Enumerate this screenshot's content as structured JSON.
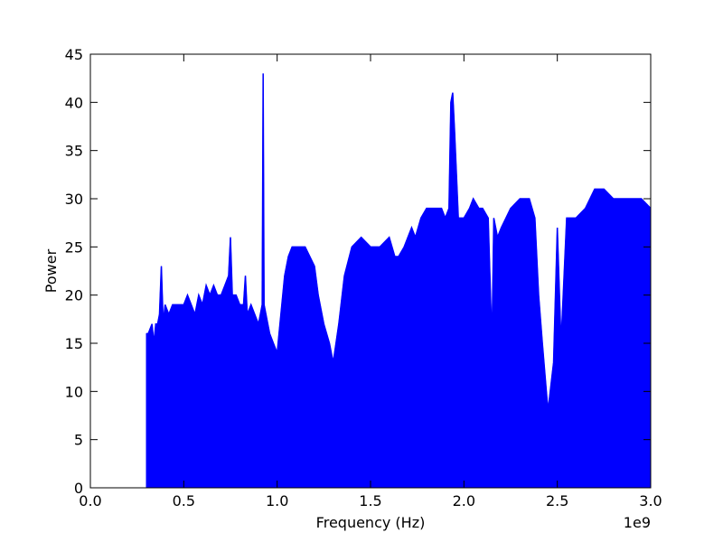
{
  "chart_data": {
    "type": "line",
    "title": "",
    "xlabel": "Frequency (Hz)",
    "ylabel": "Power",
    "x_offset_label": "1e9",
    "x_unit_scale": 1000000000,
    "xlim": [
      0.0,
      3.0
    ],
    "ylim": [
      0,
      45
    ],
    "x_ticks": [
      0.0,
      0.5,
      1.0,
      1.5,
      2.0,
      2.5,
      3.0
    ],
    "x_tick_labels": [
      "0.0",
      "0.5",
      "1.0",
      "1.5",
      "2.0",
      "2.5",
      "3.0"
    ],
    "y_ticks": [
      0,
      5,
      10,
      15,
      20,
      25,
      30,
      35,
      40,
      45
    ],
    "y_tick_labels": [
      "0",
      "5",
      "10",
      "15",
      "20",
      "25",
      "30",
      "35",
      "40",
      "45"
    ],
    "grid": false,
    "legend": "none",
    "series": [
      {
        "color": "#0000ff",
        "x": [
          0.3,
          0.31,
          0.33,
          0.34,
          0.35,
          0.36,
          0.37,
          0.38,
          0.39,
          0.4,
          0.42,
          0.44,
          0.46,
          0.48,
          0.5,
          0.52,
          0.54,
          0.56,
          0.58,
          0.6,
          0.62,
          0.64,
          0.66,
          0.68,
          0.7,
          0.72,
          0.74,
          0.75,
          0.76,
          0.78,
          0.8,
          0.82,
          0.83,
          0.84,
          0.86,
          0.88,
          0.9,
          0.92,
          0.925,
          0.93,
          0.94,
          0.96,
          0.98,
          1.0,
          1.02,
          1.04,
          1.06,
          1.08,
          1.1,
          1.15,
          1.2,
          1.22,
          1.25,
          1.28,
          1.3,
          1.33,
          1.36,
          1.4,
          1.45,
          1.5,
          1.55,
          1.6,
          1.63,
          1.65,
          1.68,
          1.7,
          1.72,
          1.74,
          1.77,
          1.8,
          1.85,
          1.88,
          1.9,
          1.92,
          1.93,
          1.94,
          1.95,
          1.97,
          2.0,
          2.03,
          2.05,
          2.08,
          2.1,
          2.13,
          2.15,
          2.16,
          2.18,
          2.2,
          2.25,
          2.3,
          2.35,
          2.38,
          2.4,
          2.42,
          2.45,
          2.48,
          2.5,
          2.52,
          2.55,
          2.6,
          2.65,
          2.7,
          2.75,
          2.8,
          2.85,
          2.9,
          2.95,
          3.0
        ],
        "values": [
          16,
          16,
          17,
          15,
          17,
          17,
          18,
          23,
          17,
          19,
          18,
          19,
          19,
          19,
          19,
          20,
          19,
          18,
          20,
          19,
          21,
          20,
          21,
          20,
          20,
          21,
          22,
          26,
          20,
          20,
          19,
          19,
          22,
          18,
          19,
          18,
          17,
          19,
          43,
          19,
          18,
          16,
          15,
          14,
          18,
          22,
          24,
          25,
          25,
          25,
          23,
          20,
          17,
          15,
          13,
          17,
          22,
          25,
          26,
          25,
          25,
          26,
          24,
          24,
          25,
          26,
          27,
          26,
          28,
          29,
          29,
          29,
          28,
          29,
          40,
          41,
          37,
          28,
          28,
          29,
          30,
          29,
          29,
          28,
          15,
          28,
          26,
          27,
          29,
          30,
          30,
          28,
          20,
          15,
          8,
          13,
          27,
          15,
          28,
          28,
          29,
          31,
          31,
          30,
          30,
          30,
          30,
          29
        ]
      }
    ]
  }
}
